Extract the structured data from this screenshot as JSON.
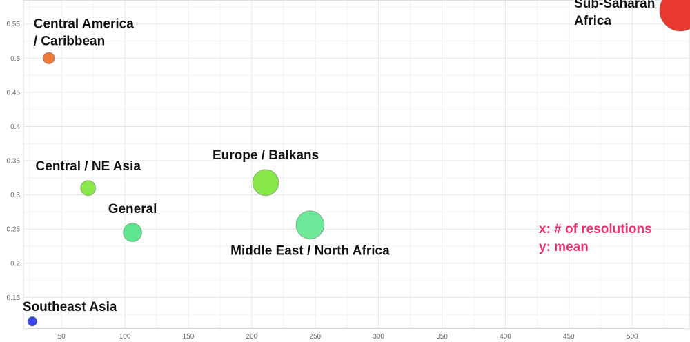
{
  "chart_data": {
    "type": "scatter",
    "title": "",
    "xlabel": "",
    "ylabel": "",
    "xlim": [
      20,
      545
    ],
    "ylim": [
      0.105,
      0.585
    ],
    "grid": true,
    "x_ticks": [
      50,
      100,
      150,
      200,
      250,
      300,
      350,
      400,
      450,
      500
    ],
    "y_ticks": [
      0.15,
      0.2,
      0.25,
      0.3,
      0.35,
      0.4,
      0.45,
      0.5,
      0.55
    ],
    "points": [
      {
        "label": "Central America / Caribbean",
        "label_lines": [
          "Central America",
          "/ Caribbean"
        ],
        "x": 40,
        "y": 0.5,
        "size": 40,
        "color": "#f07a3a"
      },
      {
        "label": "Central / NE Asia",
        "label_lines": [
          "Central / NE Asia"
        ],
        "x": 71,
        "y": 0.31,
        "size": 71,
        "color": "#88e84a"
      },
      {
        "label": "General",
        "label_lines": [
          "General"
        ],
        "x": 106,
        "y": 0.245,
        "size": 106,
        "color": "#5ee68e"
      },
      {
        "label": "Europe / Balkans",
        "label_lines": [
          "Europe / Balkans"
        ],
        "x": 211,
        "y": 0.318,
        "size": 211,
        "color": "#88e84a"
      },
      {
        "label": "Middle East / North Africa",
        "label_lines": [
          "Middle East / North Africa"
        ],
        "x": 246,
        "y": 0.256,
        "size": 246,
        "color": "#6fe89a"
      },
      {
        "label": "Sub-Saharan Africa",
        "label_lines": [
          "Sub-Saharan",
          "Africa"
        ],
        "x": 538,
        "y": 0.57,
        "size": 538,
        "color": "#e8392e"
      },
      {
        "label": "Southeast Asia",
        "label_lines": [
          "Southeast Asia"
        ],
        "x": 27,
        "y": 0.115,
        "size": 27,
        "color": "#3848e8"
      }
    ],
    "annotations": [
      "x: # of resolutions",
      "y: mean"
    ],
    "annotation_color": "#e8346e"
  }
}
